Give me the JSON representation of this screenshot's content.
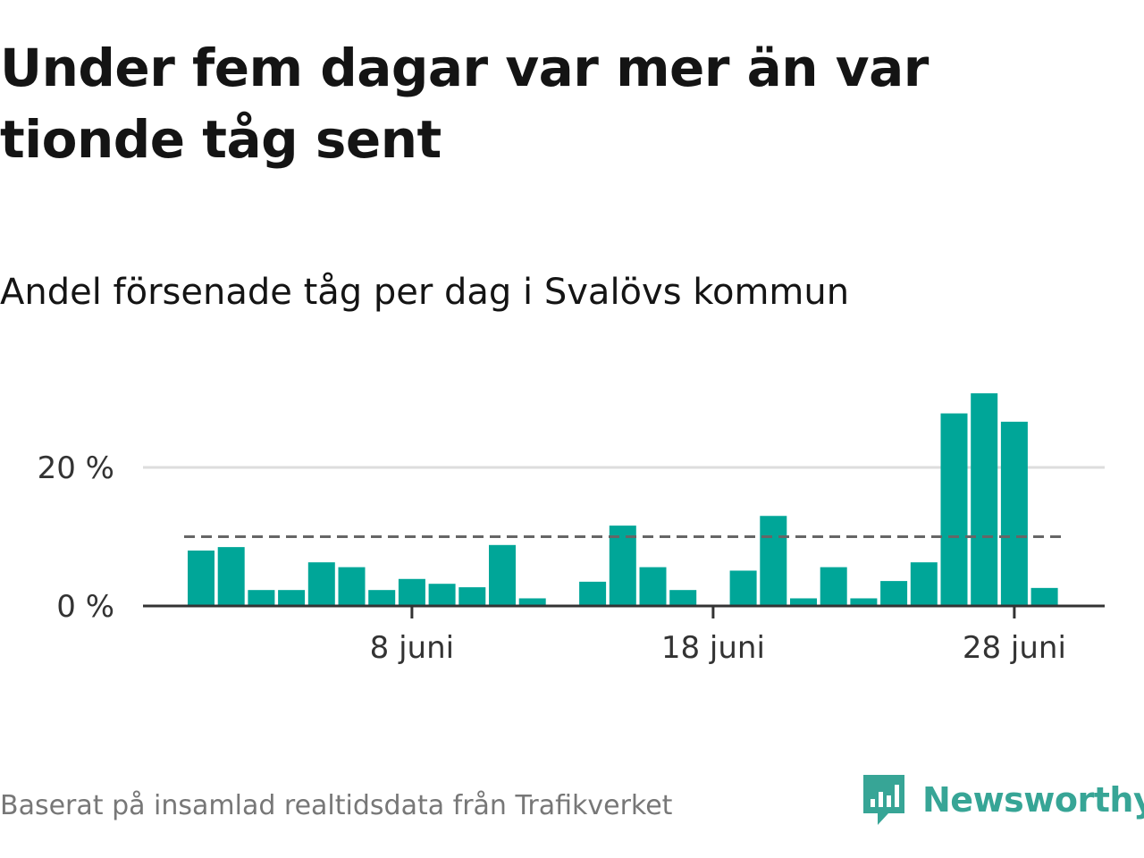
{
  "title": "Under fem dagar var mer än var tionde tåg sent",
  "subtitle": "Andel försenade tåg per dag i Svalövs kommun",
  "source": "Baserat på insamlad realtidsdata från Trafikverket",
  "brand": {
    "name": "Newsworthy",
    "icon": "newsworthy-logo-icon",
    "color": "#37a596"
  },
  "colors": {
    "bar": "#00a698",
    "reference_line": "#666666",
    "grid": "#dddddd",
    "axis": "#333333"
  },
  "chart_data": {
    "type": "bar",
    "x": [
      "1 juni",
      "2 juni",
      "3 juni",
      "4 juni",
      "5 juni",
      "6 juni",
      "7 juni",
      "8 juni",
      "9 juni",
      "10 juni",
      "11 juni",
      "12 juni",
      "13 juni",
      "14 juni",
      "15 juni",
      "16 juni",
      "17 juni",
      "18 juni",
      "19 juni",
      "20 juni",
      "21 juni",
      "22 juni",
      "23 juni",
      "24 juni",
      "25 juni",
      "26 juni",
      "27 juni",
      "28 juni",
      "29 juni"
    ],
    "values": [
      8.0,
      8.5,
      2.3,
      2.3,
      6.3,
      5.6,
      2.3,
      3.9,
      3.2,
      2.7,
      8.8,
      1.1,
      0,
      3.5,
      11.6,
      5.6,
      2.3,
      0,
      5.1,
      13.0,
      1.1,
      5.6,
      1.1,
      3.6,
      6.3,
      27.8,
      30.7,
      26.6,
      2.6
    ],
    "xticks": [
      "8 juni",
      "18 juni",
      "28 juni"
    ],
    "ytick_labels": [
      "0 %",
      "20 %"
    ],
    "yticks": [
      0,
      20
    ],
    "ylim": [
      0,
      32
    ],
    "reference_line": 10,
    "grid": true
  }
}
